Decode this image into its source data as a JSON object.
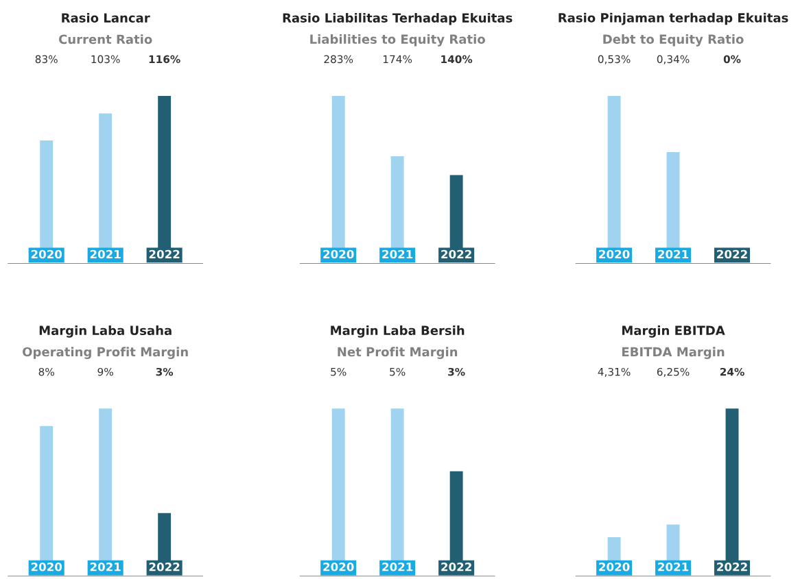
{
  "chart_data": [
    {
      "type": "bar",
      "title": "Rasio Lancar",
      "subtitle": "Current Ratio",
      "categories": [
        "2020",
        "2021",
        "2022"
      ],
      "values": [
        83,
        103,
        116
      ],
      "colors": [
        "#9fd3f0",
        "#9fd3f0",
        "#235f73"
      ],
      "value_labels": [
        "83%",
        "103%",
        "116%"
      ],
      "tick_labels": "x",
      "grid": false,
      "legend": false
    },
    {
      "type": "bar",
      "title": "Rasio Liabilitas Terhadap Ekuitas",
      "subtitle": "Liabilities to Equity Ratio",
      "categories": [
        "2020",
        "2021",
        "2022"
      ],
      "values": [
        283,
        174,
        140
      ],
      "colors": [
        "#9fd3f0",
        "#9fd3f0",
        "#235f73"
      ],
      "value_labels": [
        "283%",
        "174%",
        "140%"
      ],
      "tick_labels": "x",
      "grid": false,
      "legend": false
    },
    {
      "type": "bar",
      "title": "Rasio Pinjaman terhadap Ekuitas",
      "subtitle": "Debt to Equity Ratio",
      "categories": [
        "2020",
        "2021",
        "2022"
      ],
      "values": [
        0.53,
        0.34,
        0
      ],
      "colors": [
        "#9fd3f0",
        "#9fd3f0",
        "#235f73"
      ],
      "value_labels": [
        "0,53%",
        "0,34%",
        "0%"
      ],
      "tick_labels": "x",
      "grid": false,
      "legend": false
    },
    {
      "type": "bar",
      "title": "Margin Laba Usaha",
      "subtitle": "Operating Profit Margin",
      "categories": [
        "2020",
        "2021",
        "2022"
      ],
      "values": [
        8,
        9,
        3
      ],
      "colors": [
        "#9fd3f0",
        "#9fd3f0",
        "#235f73"
      ],
      "value_labels": [
        "8%",
        "9%",
        "3%"
      ],
      "tick_labels": "x",
      "grid": false,
      "legend": false
    },
    {
      "type": "bar",
      "title": "Margin Laba Bersih",
      "subtitle": "Net Profit Margin",
      "categories": [
        "2020",
        "2021",
        "2022"
      ],
      "values": [
        5,
        5,
        3
      ],
      "colors": [
        "#9fd3f0",
        "#9fd3f0",
        "#235f73"
      ],
      "value_labels": [
        "5%",
        "5%",
        "3%"
      ],
      "tick_labels": "x",
      "grid": false,
      "legend": false
    },
    {
      "type": "bar",
      "title": "Margin EBITDA",
      "subtitle": "EBITDA Margin",
      "categories": [
        "2020",
        "2021",
        "2022"
      ],
      "values": [
        4.31,
        6.25,
        24
      ],
      "colors": [
        "#9fd3f0",
        "#9fd3f0",
        "#235f73"
      ],
      "value_labels": [
        "4,31%",
        "6,25%",
        "24%"
      ],
      "tick_labels": "x",
      "grid": false,
      "legend": false
    }
  ]
}
